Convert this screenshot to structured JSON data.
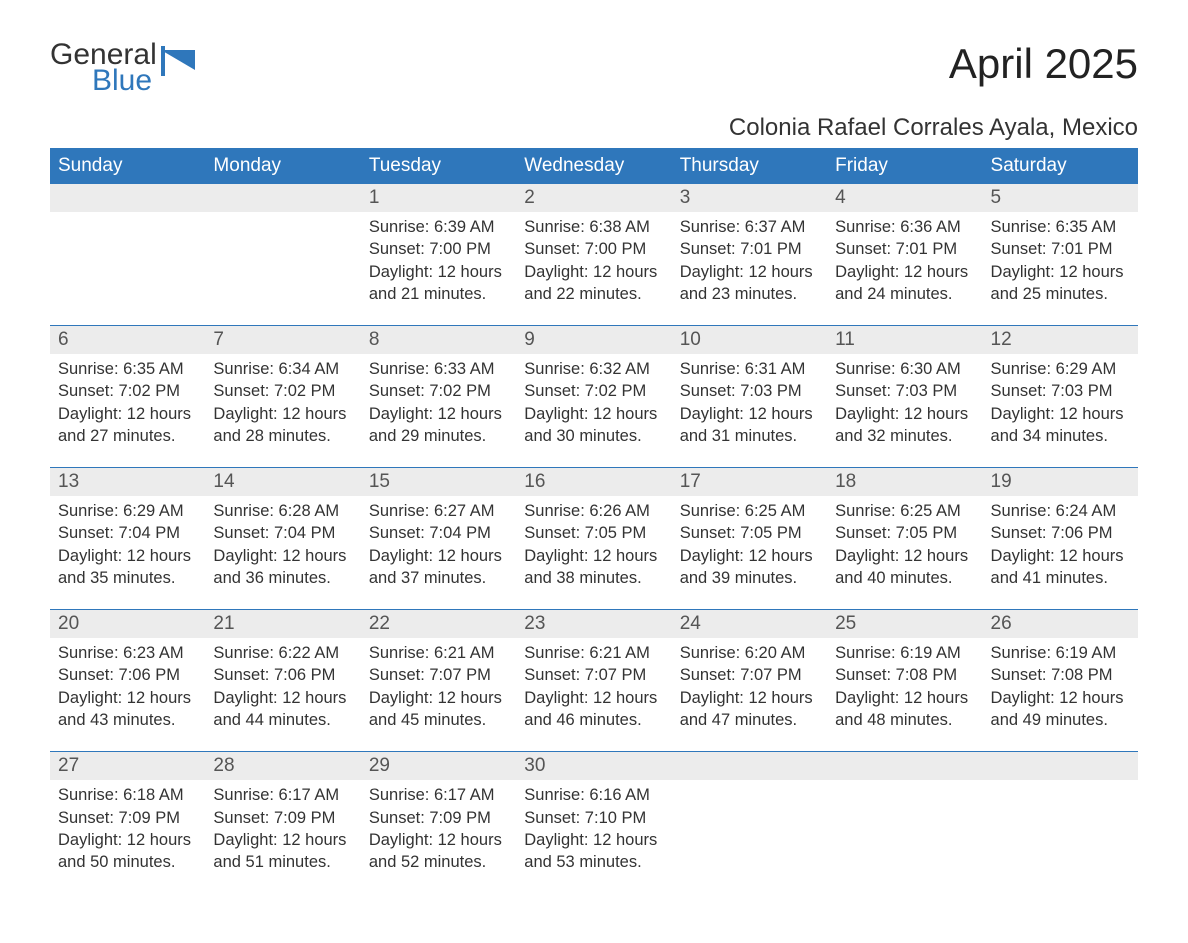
{
  "logo": {
    "general": "General",
    "blue": "Blue",
    "icon_color": "#2f77bb"
  },
  "title": "April 2025",
  "subtitle": "Colonia Rafael Corrales Ayala, Mexico",
  "colors": {
    "header_bg": "#2f77bb",
    "header_text": "#ffffff",
    "daynum_bg": "#ececec",
    "week_border": "#2f77bb",
    "body_text": "#333333"
  },
  "weekdays": [
    "Sunday",
    "Monday",
    "Tuesday",
    "Wednesday",
    "Thursday",
    "Friday",
    "Saturday"
  ],
  "labels": {
    "sunrise": "Sunrise:",
    "sunset": "Sunset:",
    "daylight": "Daylight:"
  },
  "weeks": [
    [
      {
        "n": "",
        "empty": true
      },
      {
        "n": "",
        "empty": true
      },
      {
        "n": "1",
        "sunrise": "6:39 AM",
        "sunset": "7:00 PM",
        "daylight": "12 hours and 21 minutes."
      },
      {
        "n": "2",
        "sunrise": "6:38 AM",
        "sunset": "7:00 PM",
        "daylight": "12 hours and 22 minutes."
      },
      {
        "n": "3",
        "sunrise": "6:37 AM",
        "sunset": "7:01 PM",
        "daylight": "12 hours and 23 minutes."
      },
      {
        "n": "4",
        "sunrise": "6:36 AM",
        "sunset": "7:01 PM",
        "daylight": "12 hours and 24 minutes."
      },
      {
        "n": "5",
        "sunrise": "6:35 AM",
        "sunset": "7:01 PM",
        "daylight": "12 hours and 25 minutes."
      }
    ],
    [
      {
        "n": "6",
        "sunrise": "6:35 AM",
        "sunset": "7:02 PM",
        "daylight": "12 hours and 27 minutes."
      },
      {
        "n": "7",
        "sunrise": "6:34 AM",
        "sunset": "7:02 PM",
        "daylight": "12 hours and 28 minutes."
      },
      {
        "n": "8",
        "sunrise": "6:33 AM",
        "sunset": "7:02 PM",
        "daylight": "12 hours and 29 minutes."
      },
      {
        "n": "9",
        "sunrise": "6:32 AM",
        "sunset": "7:02 PM",
        "daylight": "12 hours and 30 minutes."
      },
      {
        "n": "10",
        "sunrise": "6:31 AM",
        "sunset": "7:03 PM",
        "daylight": "12 hours and 31 minutes."
      },
      {
        "n": "11",
        "sunrise": "6:30 AM",
        "sunset": "7:03 PM",
        "daylight": "12 hours and 32 minutes."
      },
      {
        "n": "12",
        "sunrise": "6:29 AM",
        "sunset": "7:03 PM",
        "daylight": "12 hours and 34 minutes."
      }
    ],
    [
      {
        "n": "13",
        "sunrise": "6:29 AM",
        "sunset": "7:04 PM",
        "daylight": "12 hours and 35 minutes."
      },
      {
        "n": "14",
        "sunrise": "6:28 AM",
        "sunset": "7:04 PM",
        "daylight": "12 hours and 36 minutes."
      },
      {
        "n": "15",
        "sunrise": "6:27 AM",
        "sunset": "7:04 PM",
        "daylight": "12 hours and 37 minutes."
      },
      {
        "n": "16",
        "sunrise": "6:26 AM",
        "sunset": "7:05 PM",
        "daylight": "12 hours and 38 minutes."
      },
      {
        "n": "17",
        "sunrise": "6:25 AM",
        "sunset": "7:05 PM",
        "daylight": "12 hours and 39 minutes."
      },
      {
        "n": "18",
        "sunrise": "6:25 AM",
        "sunset": "7:05 PM",
        "daylight": "12 hours and 40 minutes."
      },
      {
        "n": "19",
        "sunrise": "6:24 AM",
        "sunset": "7:06 PM",
        "daylight": "12 hours and 41 minutes."
      }
    ],
    [
      {
        "n": "20",
        "sunrise": "6:23 AM",
        "sunset": "7:06 PM",
        "daylight": "12 hours and 43 minutes."
      },
      {
        "n": "21",
        "sunrise": "6:22 AM",
        "sunset": "7:06 PM",
        "daylight": "12 hours and 44 minutes."
      },
      {
        "n": "22",
        "sunrise": "6:21 AM",
        "sunset": "7:07 PM",
        "daylight": "12 hours and 45 minutes."
      },
      {
        "n": "23",
        "sunrise": "6:21 AM",
        "sunset": "7:07 PM",
        "daylight": "12 hours and 46 minutes."
      },
      {
        "n": "24",
        "sunrise": "6:20 AM",
        "sunset": "7:07 PM",
        "daylight": "12 hours and 47 minutes."
      },
      {
        "n": "25",
        "sunrise": "6:19 AM",
        "sunset": "7:08 PM",
        "daylight": "12 hours and 48 minutes."
      },
      {
        "n": "26",
        "sunrise": "6:19 AM",
        "sunset": "7:08 PM",
        "daylight": "12 hours and 49 minutes."
      }
    ],
    [
      {
        "n": "27",
        "sunrise": "6:18 AM",
        "sunset": "7:09 PM",
        "daylight": "12 hours and 50 minutes."
      },
      {
        "n": "28",
        "sunrise": "6:17 AM",
        "sunset": "7:09 PM",
        "daylight": "12 hours and 51 minutes."
      },
      {
        "n": "29",
        "sunrise": "6:17 AM",
        "sunset": "7:09 PM",
        "daylight": "12 hours and 52 minutes."
      },
      {
        "n": "30",
        "sunrise": "6:16 AM",
        "sunset": "7:10 PM",
        "daylight": "12 hours and 53 minutes."
      },
      {
        "n": "",
        "empty": true
      },
      {
        "n": "",
        "empty": true
      },
      {
        "n": "",
        "empty": true
      }
    ]
  ]
}
